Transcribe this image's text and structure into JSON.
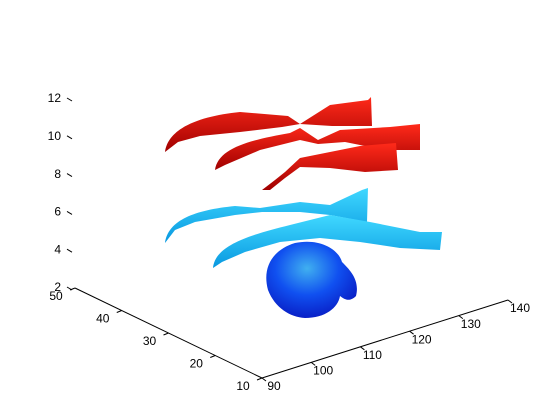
{
  "chart_data": {
    "type": "streamtube",
    "xlim": [
      90,
      140
    ],
    "xticks": [
      90,
      100,
      110,
      120,
      130,
      140
    ],
    "ylim": [
      10,
      50
    ],
    "yticks": [
      10,
      20,
      30,
      40,
      50
    ],
    "zlim": [
      2,
      12
    ],
    "zticks": [
      2,
      4,
      6,
      8,
      10,
      12
    ]
  }
}
